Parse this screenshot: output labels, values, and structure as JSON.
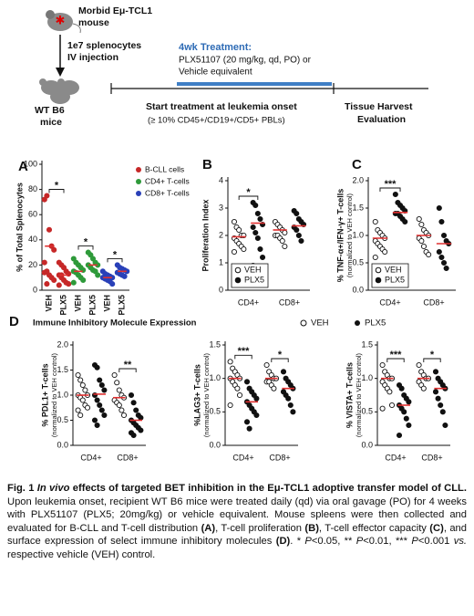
{
  "schematic": {
    "donor": [
      "Morbid Eμ-TCL1",
      "mouse"
    ],
    "injection": [
      "1e7 splenocytes",
      "IV injection"
    ],
    "recipient": [
      "WT B6",
      "mice"
    ],
    "treatment_title": "4wk Treatment:",
    "treatment": [
      "PLX51107 (20 mg/kg, qd, PO) or",
      "Vehicle equivalent"
    ],
    "start": "Start treatment at leukemia onset",
    "criterion": "(≥ 10% CD45+/CD19+/CD5+ PBLs)",
    "harvest": [
      "Tissue Harvest",
      "Evaluation"
    ]
  },
  "panel_d": {
    "letter": "D",
    "title": "Immune Inhibitory Molecule Expression"
  },
  "chart_data": [
    {
      "type": "strip",
      "letter": "A",
      "ylabel": "% of Total Splenocytes",
      "categories": [
        "VEH",
        "PLX5",
        "VEH",
        "PLX5",
        "VEH",
        "PLX5"
      ],
      "rotate_xlabels": true,
      "ylim": [
        0,
        100
      ],
      "yticks": [
        0,
        20,
        40,
        60,
        80,
        100
      ],
      "legend": "right-outside",
      "mean_color": "#e03030",
      "series": [
        {
          "name": "B-CLL cells",
          "color": "#c62828",
          "filled": true,
          "values": [
            [
              72,
              75,
              48,
              35,
              32,
              22,
              15,
              12,
              10,
              8,
              14,
              5
            ],
            [
              22,
              20,
              18,
              15,
              13,
              12,
              10,
              8,
              6,
              5,
              4,
              12
            ],
            null,
            null,
            null,
            null
          ],
          "means": [
            35,
            12,
            null,
            null,
            null,
            null
          ]
        },
        {
          "name": "CD4+ T-cells",
          "color": "#2e9a3a",
          "filled": true,
          "values": [
            null,
            null,
            [
              25,
              22,
              20,
              18,
              16,
              15,
              14,
              12,
              10,
              8,
              6
            ],
            [
              30,
              28,
              25,
              22,
              20,
              20,
              18,
              16,
              15,
              12
            ],
            null,
            null
          ],
          "means": [
            null,
            null,
            15,
            20,
            null,
            null
          ]
        },
        {
          "name": "CD8+ T-cells",
          "color": "#2940b8",
          "filled": true,
          "values": [
            null,
            null,
            null,
            null,
            [
              15,
              13,
              12,
              11,
              10,
              10,
              9,
              8,
              7,
              5
            ],
            [
              20,
              18,
              17,
              16,
              15,
              14,
              13,
              12,
              11
            ]
          ],
          "means": [
            null,
            null,
            null,
            null,
            10,
            15
          ]
        }
      ],
      "significance": [
        {
          "label": "*",
          "categories": [
            0,
            1
          ]
        },
        {
          "label": "*",
          "categories": [
            2,
            3
          ]
        },
        {
          "label": "*",
          "categories": [
            4,
            5
          ]
        }
      ]
    },
    {
      "type": "strip",
      "letter": "B",
      "ylabel": "Proliferation Index",
      "dodge": true,
      "categories": [
        "CD4+",
        "CD8+"
      ],
      "ylim": [
        0,
        4
      ],
      "yticks": [
        0,
        1,
        2,
        3,
        4
      ],
      "legend": "lower-left",
      "mean_color": "#e03030",
      "series": [
        {
          "name": "VEH",
          "color": "#111111",
          "filled": false,
          "values": [
            [
              2.5,
              2.3,
              2.2,
              2.0,
              2.0,
              1.9,
              1.8,
              1.7,
              1.6,
              1.5,
              1.4
            ],
            [
              2.5,
              2.4,
              2.3,
              2.2,
              2.1,
              2.0,
              2.0,
              1.9,
              1.8,
              1.6
            ]
          ],
          "means": [
            1.95,
            2.2
          ]
        },
        {
          "name": "PLX5",
          "color": "#111111",
          "filled": true,
          "values": [
            [
              3.2,
              3.1,
              2.8,
              2.6,
              2.4,
              2.3,
              2.1,
              1.9,
              1.5,
              1.2,
              0.9
            ],
            [
              2.9,
              2.8,
              2.6,
              2.5,
              2.4,
              2.3,
              2.2,
              2.0,
              1.8
            ]
          ],
          "means": [
            2.45,
            2.35
          ]
        }
      ],
      "significance": [
        {
          "label": "*",
          "category": 0
        }
      ]
    },
    {
      "type": "strip",
      "letter": "C",
      "ylabel": "% TNF-α+/IFN-γ+ T-cells",
      "ylabel_note": "(normalized to VEH control)",
      "dodge": true,
      "categories": [
        "CD4+",
        "CD8+"
      ],
      "ylim": [
        0,
        2
      ],
      "yticks": [
        {
          "value": 0,
          "label": "0.0"
        },
        {
          "value": 0.5,
          "label": "0.5"
        },
        {
          "value": 1,
          "label": "1.0"
        },
        {
          "value": 1.5,
          "label": "1.5"
        },
        {
          "value": 2,
          "label": "2.0"
        }
      ],
      "legend": "lower-left",
      "mean_color": "#e03030",
      "series": [
        {
          "name": "VEH",
          "color": "#111111",
          "filled": false,
          "values": [
            [
              1.25,
              1.1,
              1.05,
              1.0,
              0.95,
              0.9,
              0.85,
              0.8,
              0.75,
              0.7,
              0.6
            ],
            [
              1.3,
              1.2,
              1.1,
              1.05,
              1.0,
              0.95,
              0.9,
              0.8,
              0.7,
              0.65
            ]
          ],
          "means": [
            0.95,
            1.0
          ]
        },
        {
          "name": "PLX5",
          "color": "#111111",
          "filled": true,
          "values": [
            [
              1.75,
              1.6,
              1.55,
              1.5,
              1.45,
              1.4,
              1.4,
              1.35,
              1.3,
              1.25
            ],
            [
              1.5,
              1.25,
              1.0,
              0.9,
              0.85,
              0.7,
              0.6,
              0.5,
              0.4
            ]
          ],
          "means": [
            1.42,
            0.85
          ]
        }
      ],
      "significance": [
        {
          "label": "***",
          "category": 0
        }
      ]
    },
    {
      "type": "strip",
      "ylabel": "% PDL1+ T-cells",
      "ylabel_note": "(normalized to VEH control)",
      "dodge": true,
      "categories": [
        "CD4+",
        "CD8+"
      ],
      "ylim": [
        0,
        2
      ],
      "yticks": [
        {
          "value": 0,
          "label": "0.0"
        },
        {
          "value": 0.5,
          "label": "0.5"
        },
        {
          "value": 1,
          "label": "1.0"
        },
        {
          "value": 1.5,
          "label": "1.5"
        },
        {
          "value": 2,
          "label": "2.0"
        }
      ],
      "mean_color": "#e03030",
      "series": [
        {
          "name": "VEH",
          "color": "#111111",
          "filled": false,
          "values": [
            [
              1.4,
              1.3,
              1.2,
              1.1,
              1.0,
              1.0,
              0.95,
              0.9,
              0.8,
              0.75,
              0.7,
              0.6
            ],
            [
              1.4,
              1.25,
              1.1,
              1.0,
              0.95,
              0.9,
              0.85,
              0.8,
              0.7,
              0.6
            ]
          ],
          "means": [
            1.0,
            0.95
          ]
        },
        {
          "name": "PLX5",
          "color": "#111111",
          "filled": true,
          "values": [
            [
              1.6,
              1.55,
              1.3,
              1.2,
              1.1,
              1.0,
              0.9,
              0.8,
              0.7,
              0.6,
              0.5,
              0.4
            ],
            [
              1.0,
              0.85,
              0.7,
              0.6,
              0.55,
              0.5,
              0.45,
              0.4,
              0.35,
              0.3,
              0.25,
              0.2
            ]
          ],
          "means": [
            1.02,
            0.5
          ]
        }
      ],
      "significance": [
        {
          "label": "**",
          "category": 1
        }
      ]
    },
    {
      "type": "strip",
      "ylabel": "%LAG3+ T-cells",
      "ylabel_note": "(normalized to VEH control)",
      "dodge": true,
      "categories": [
        "CD4+",
        "CD8+"
      ],
      "ylim": [
        0,
        1.5
      ],
      "yticks": [
        {
          "value": 0,
          "label": "0.0"
        },
        {
          "value": 0.5,
          "label": "0.5"
        },
        {
          "value": 1,
          "label": "1.0"
        },
        {
          "value": 1.5,
          "label": "1.5"
        }
      ],
      "mean_color": "#e03030",
      "series": [
        {
          "name": "VEH",
          "color": "#111111",
          "filled": false,
          "values": [
            [
              1.25,
              1.15,
              1.1,
              1.05,
              1.0,
              1.0,
              0.95,
              0.9,
              0.85,
              0.75,
              0.6
            ],
            [
              1.2,
              1.1,
              1.05,
              1.0,
              1.0,
              0.95,
              0.95,
              0.9,
              0.85
            ]
          ],
          "means": [
            1.0,
            1.0
          ]
        },
        {
          "name": "PLX5",
          "color": "#111111",
          "filled": true,
          "values": [
            [
              0.95,
              0.85,
              0.8,
              0.75,
              0.7,
              0.65,
              0.6,
              0.55,
              0.5,
              0.45,
              0.35,
              0.25
            ],
            [
              1.1,
              1.0,
              0.95,
              0.9,
              0.85,
              0.8,
              0.75,
              0.7,
              0.6,
              0.5
            ]
          ],
          "means": [
            0.65,
            0.85
          ]
        }
      ],
      "significance": [
        {
          "label": "***",
          "category": 0
        },
        {
          "label": "*",
          "category": 1
        }
      ]
    },
    {
      "type": "strip",
      "ylabel": "% VISTA+ T-cells",
      "ylabel_note": "(normalized to VEH control)",
      "dodge": true,
      "categories": [
        "CD4+",
        "CD8+"
      ],
      "ylim": [
        0,
        1.5
      ],
      "yticks": [
        {
          "value": 0,
          "label": "0.0"
        },
        {
          "value": 0.5,
          "label": "0.5"
        },
        {
          "value": 1,
          "label": "1.0"
        },
        {
          "value": 1.5,
          "label": "1.5"
        }
      ],
      "mean_color": "#e03030",
      "series": [
        {
          "name": "VEH",
          "color": "#111111",
          "filled": false,
          "values": [
            [
              1.2,
              1.1,
              1.05,
              1.0,
              1.0,
              0.95,
              0.9,
              0.85,
              0.8,
              0.6,
              0.55
            ],
            [
              1.2,
              1.1,
              1.05,
              1.0,
              1.0,
              0.95,
              0.9,
              0.85
            ]
          ],
          "means": [
            1.0,
            1.0
          ]
        },
        {
          "name": "PLX5",
          "color": "#111111",
          "filled": true,
          "values": [
            [
              0.9,
              0.85,
              0.75,
              0.7,
              0.65,
              0.6,
              0.55,
              0.5,
              0.4,
              0.3,
              0.15
            ],
            [
              1.1,
              1.0,
              0.95,
              0.9,
              0.85,
              0.8,
              0.7,
              0.6,
              0.5,
              0.3
            ]
          ],
          "means": [
            0.6,
            0.85
          ]
        }
      ],
      "significance": [
        {
          "label": "***",
          "category": 0
        },
        {
          "label": "*",
          "category": 1
        }
      ]
    }
  ],
  "caption": [
    "Fig. 1 ",
    "In vivo",
    " effects of targeted BET inhibition in the Eμ-TCL1 adoptive transfer model of CLL.",
    " Upon leukemia onset, recipient WT B6 mice were treated daily (qd) via oral gavage (PO) for 4 weeks with PLX51107 (PLX5; 20mg/kg) or vehicle equivalent. Mouse spleens were then collected and evaluated for B-CLL and T-cell distribution ",
    "(A)",
    ", T-cell proliferation ",
    "(B)",
    ", T-cell effector capacity ",
    "(C)",
    ", and surface expression of select immune inhibitory molecules ",
    "(D)",
    ". * ",
    "P",
    "<0.05, ** ",
    "P",
    "<0.01, *** ",
    "P",
    "<0.001 ",
    "vs.",
    " respective vehicle (VEH) control."
  ]
}
